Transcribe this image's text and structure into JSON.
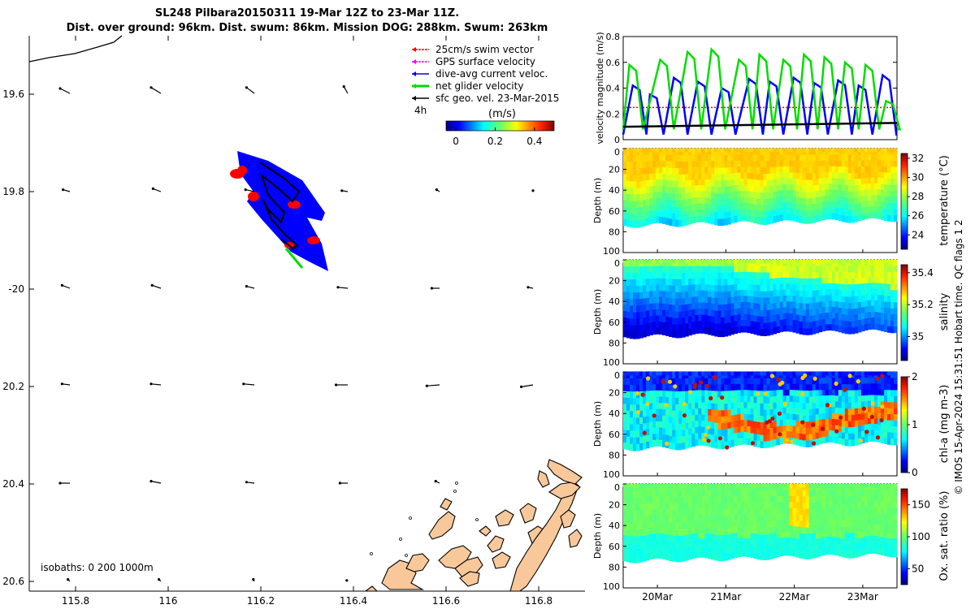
{
  "title": {
    "line1": "SL248 Pilbara20150311 19-Mar 12Z to 23-Mar 11Z.",
    "line2": "Dist. over ground: 96km. Dist. swum: 86km. Mission DOG: 288km. Swum: 263km"
  },
  "side_credit": "© IMOS 15-Apr-2024 15:31:51 Hobart time. QC flags 1  2",
  "colors": {
    "swim_vector": "#ff0000",
    "gps_velocity": "#ff00ff",
    "dive_avg_current": "#0000ff",
    "net_glider": "#00dd00",
    "sfc_geo": "#000000",
    "land": "#f8c89a"
  },
  "map": {
    "xticks": [
      115.8,
      116,
      116.2,
      116.4,
      116.6,
      116.8
    ],
    "xtick_labels": [
      "115.8",
      "116",
      "116.2",
      "116.4",
      "116.6",
      "116.8"
    ],
    "yticks": [
      -19.6,
      -19.8,
      -20,
      -20.2,
      -20.4,
      -20.6
    ],
    "ytick_labels": [
      "19.6",
      "19.8",
      "-20",
      "20.2",
      "20.4",
      "20.6"
    ],
    "xlim": [
      115.7,
      116.9
    ],
    "ylim": [
      -20.62,
      -19.48
    ],
    "legend": [
      {
        "label": "25cm/s swim vector",
        "color_key": "swim_vector"
      },
      {
        "label": "GPS surface velocity",
        "color_key": "gps_velocity"
      },
      {
        "label": "dive-avg current veloc.",
        "color_key": "dive_avg_current"
      },
      {
        "label": "net glider velocity",
        "color_key": "net_glider"
      },
      {
        "label": "sfc geo. vel. 23-Mar-2015",
        "color_key": "sfc_geo"
      }
    ],
    "legend_sub": "4h",
    "colorbar": {
      "title": "(m/s)",
      "ticks": [
        0,
        0.2,
        0.4
      ],
      "tick_labels": [
        "0",
        "0.2",
        "0.4"
      ],
      "range": [
        -0.05,
        0.5
      ]
    },
    "isobaths_label": "isobaths: 0   200  1000m"
  },
  "chart_data": [
    {
      "type": "line",
      "ylabel": "velocity magnitude (m/s)",
      "ylim": [
        0,
        0.8
      ],
      "yticks": [
        0,
        0.2,
        0.4,
        0.6,
        0.8
      ],
      "ytick_labels": [
        "0",
        "0.2",
        "0.4",
        "0.6",
        "0.8"
      ],
      "x_range_days": [
        19.5,
        23.5
      ],
      "series": [
        {
          "color_key": "net_glider",
          "peak_days": [
            19.65,
            20.1,
            20.5,
            20.85,
            21.25,
            21.55,
            21.9,
            22.2,
            22.5,
            22.8,
            23.1,
            23.4
          ],
          "peak_values": [
            0.58,
            0.62,
            0.68,
            0.7,
            0.62,
            0.66,
            0.62,
            0.66,
            0.64,
            0.6,
            0.58,
            0.3
          ]
        },
        {
          "color_key": "dive_avg_current",
          "peak_days": [
            19.7,
            19.95,
            20.3,
            20.65,
            21.0,
            21.4,
            21.7,
            22.05,
            22.35,
            22.7,
            23.0,
            23.35
          ],
          "peak_values": [
            0.42,
            0.35,
            0.48,
            0.45,
            0.4,
            0.47,
            0.45,
            0.48,
            0.44,
            0.46,
            0.42,
            0.5
          ]
        },
        {
          "color_key": "swim_vector",
          "constant": 0.25
        },
        {
          "color_key": "sfc_geo",
          "start": 0.1,
          "end": 0.13
        }
      ]
    },
    {
      "type": "heatmap",
      "variable": "temperature",
      "cbar_label": "temperature (°C)",
      "cbar_range": [
        22.5,
        32.5
      ],
      "cbar_ticks": [
        24,
        26,
        28,
        30,
        32
      ],
      "cbar_tick_labels": [
        "24",
        "26",
        "28",
        "30",
        "32"
      ],
      "depth_label": "Depth (m)",
      "depth_ticks": [
        0,
        20,
        40,
        60,
        80,
        100
      ],
      "depth_tick_labels": [
        "0",
        "20",
        "40",
        "60",
        "80",
        "100"
      ]
    },
    {
      "type": "heatmap",
      "variable": "salinity",
      "cbar_label": "salinity",
      "cbar_range": [
        34.85,
        35.45
      ],
      "cbar_ticks": [
        35,
        35.2,
        35.4
      ],
      "cbar_tick_labels": [
        "35",
        "35.2",
        "35.4"
      ],
      "depth_label": "Depth (m)",
      "depth_ticks": [
        0,
        20,
        40,
        60,
        80,
        100
      ],
      "depth_tick_labels": [
        "0",
        "20",
        "40",
        "60",
        "80",
        "100"
      ]
    },
    {
      "type": "heatmap",
      "variable": "chl-a",
      "cbar_label": "chl-a (mg m-3)",
      "cbar_range": [
        0,
        2
      ],
      "cbar_ticks": [
        0,
        1,
        2
      ],
      "cbar_tick_labels": [
        "0",
        "1",
        "2"
      ],
      "depth_label": "Depth (m)",
      "depth_ticks": [
        0,
        20,
        40,
        60,
        80,
        100
      ],
      "depth_tick_labels": [
        "0",
        "20",
        "40",
        "60",
        "80",
        "100"
      ]
    },
    {
      "type": "heatmap",
      "variable": "oxygen",
      "cbar_label": "Ox. sat. ratio (%)",
      "cbar_range": [
        25,
        175
      ],
      "cbar_ticks": [
        50,
        100,
        150
      ],
      "cbar_tick_labels": [
        "50",
        "100",
        "150"
      ],
      "depth_label": "Depth (m)",
      "depth_ticks": [
        0,
        20,
        40,
        60,
        80,
        100
      ],
      "depth_tick_labels": [
        "0",
        "20",
        "40",
        "60",
        "80",
        "100"
      ],
      "xticks": [
        "20Mar",
        "21Mar",
        "22Mar",
        "23Mar"
      ]
    }
  ]
}
